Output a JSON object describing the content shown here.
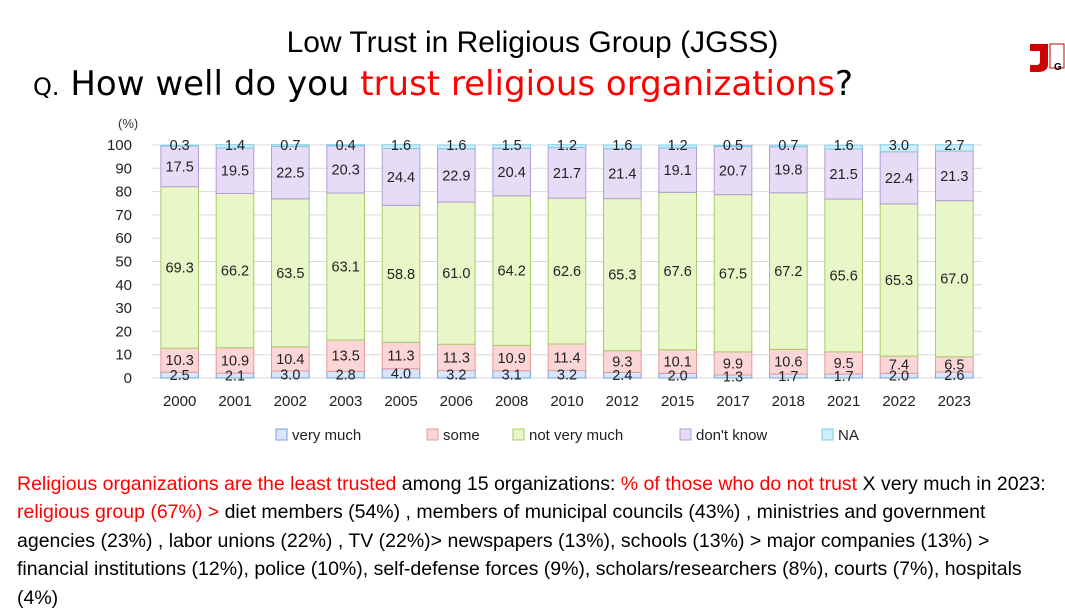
{
  "title": "Low Trust in Religious Group (JGSS)",
  "question": {
    "prefix": "Q.",
    "before": "How well do you ",
    "highlight": "trust religious organizations",
    "after": "?"
  },
  "logo": {
    "name": "jgss-logo",
    "color": "#cc0000"
  },
  "colors": {
    "highlight": "#ff0000",
    "very_much": "#d8e6fb",
    "some": "#fcd6d6",
    "not_very_much": "#e8f6c8",
    "dont_know": "#e6dcf6",
    "na": "#cfeefb"
  },
  "chart_data": {
    "type": "bar",
    "stacked": true,
    "ylabel": "(%)",
    "ylim": [
      0,
      100
    ],
    "yticks": [
      0,
      10,
      20,
      30,
      40,
      50,
      60,
      70,
      80,
      90,
      100
    ],
    "grid": true,
    "legend_position": "bottom",
    "categories": [
      "2000",
      "2001",
      "2002",
      "2003",
      "2005",
      "2006",
      "2008",
      "2010",
      "2012",
      "2015",
      "2017",
      "2018",
      "2021",
      "2022",
      "2023"
    ],
    "series": [
      {
        "name": "very much",
        "values": [
          2.5,
          2.1,
          3.0,
          2.8,
          4.0,
          3.2,
          3.1,
          3.2,
          2.4,
          2.0,
          1.3,
          1.7,
          1.7,
          2.0,
          2.6
        ]
      },
      {
        "name": "some",
        "values": [
          10.3,
          10.9,
          10.4,
          13.5,
          11.3,
          11.3,
          10.9,
          11.4,
          9.3,
          10.1,
          9.9,
          10.6,
          9.5,
          7.4,
          6.5
        ]
      },
      {
        "name": "not very much",
        "values": [
          69.3,
          66.2,
          63.5,
          63.1,
          58.8,
          61.0,
          64.2,
          62.6,
          65.3,
          67.6,
          67.5,
          67.2,
          65.6,
          65.3,
          67.0
        ]
      },
      {
        "name": "don't know",
        "values": [
          17.5,
          19.5,
          22.5,
          20.3,
          24.4,
          22.9,
          20.4,
          21.7,
          21.4,
          19.1,
          20.7,
          19.8,
          21.5,
          22.4,
          21.3
        ]
      },
      {
        "name": "NA",
        "values": [
          0.3,
          1.4,
          0.7,
          0.4,
          1.6,
          1.6,
          1.5,
          1.2,
          1.6,
          1.2,
          0.5,
          0.7,
          1.6,
          3.0,
          2.7
        ]
      }
    ],
    "labels": [
      [
        "2.5",
        "2.1",
        "3.0",
        "2.8",
        "4.0",
        "3.2",
        "3.1",
        "3.2",
        "2.4",
        "2.0",
        "1.3",
        "1.7",
        "1.7",
        "2.0",
        "2.6"
      ],
      [
        "10.3",
        "10.9",
        "10.4",
        "13.5",
        "11.3",
        "11.3",
        "10.9",
        "11.4",
        "9.3",
        "10.1",
        "9.9",
        "10.6",
        "9.5",
        "7.4",
        "6.5"
      ],
      [
        "69.3",
        "66.2",
        "63.5",
        "63.1",
        "58.8",
        "61.0",
        "64.2",
        "62.6",
        "65.3",
        "67.6",
        "67.5",
        "67.2",
        "65.6",
        "65.3",
        "67.0"
      ],
      [
        "17.5",
        "19.5",
        "22.5",
        "20.3",
        "24.4",
        "22.9",
        "20.4",
        "21.7",
        "21.4",
        "19.1",
        "20.7",
        "19.8",
        "21.5",
        "22.4",
        "21.3"
      ],
      [
        "0.3",
        "1.4",
        "0.7",
        "0.4",
        "1.6",
        "1.6",
        "1.5",
        "1.2",
        "1.6",
        "1.2",
        "0.5",
        "0.7",
        "1.6",
        "3.0",
        "2.7"
      ]
    ]
  },
  "footer": {
    "p1": "Religious organizations are the least trusted",
    "p2": " among 15 organizations: ",
    "p3": "% of those who do not trust",
    "p4": " X very much in 2023: ",
    "p5": "religious group (67%) >",
    "p6": " diet members (54%) , members of municipal councils (43%) , ministries and government agencies (23%) , labor unions (22%) , TV (22%)> newspapers (13%), schools (13%) > major companies (13%) > financial institutions (12%), police (10%), self-defense forces (9%), scholars/researchers (8%), courts (7%), hospitals (4%)"
  }
}
